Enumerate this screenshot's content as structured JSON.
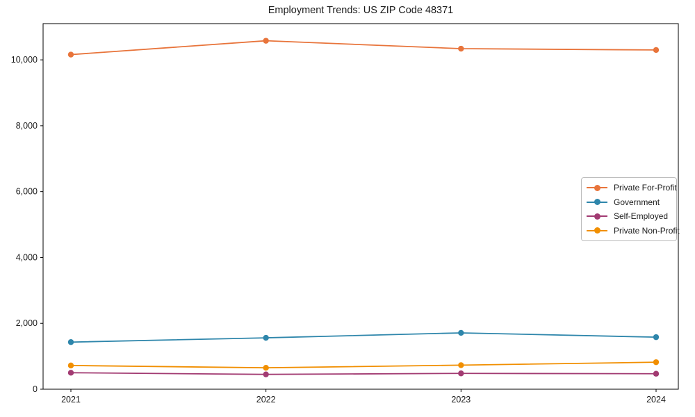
{
  "title": "Employment Trends: US ZIP Code 48371",
  "chart_data": {
    "type": "line",
    "title": "Employment Trends: US ZIP Code 48371",
    "xlabel": "",
    "ylabel": "",
    "categories": [
      "2021",
      "2022",
      "2023",
      "2024"
    ],
    "series": [
      {
        "name": "Private For-Profit",
        "color": "#E8743B",
        "values": [
          10160,
          10580,
          10340,
          10300
        ]
      },
      {
        "name": "Government",
        "color": "#2E86AB",
        "values": [
          1430,
          1560,
          1710,
          1580
        ]
      },
      {
        "name": "Self-Employed",
        "color": "#A23B72",
        "values": [
          500,
          450,
          480,
          470
        ]
      },
      {
        "name": "Private Non-Profit",
        "color": "#F18F01",
        "values": [
          720,
          650,
          730,
          820
        ]
      }
    ],
    "ylim": [
      0,
      11100
    ],
    "yticks": {
      "values": [
        0,
        2000,
        4000,
        6000,
        8000,
        10000
      ],
      "labels": [
        "0",
        "2,000",
        "4,000",
        "6,000",
        "8,000",
        "10,000"
      ]
    },
    "grid": false,
    "legend_position": "center-right",
    "axis_color": "#000000",
    "tick_label_color": "#1a1a1a",
    "marker": "circle",
    "line_width": 1.8,
    "marker_radius": 4.2
  }
}
